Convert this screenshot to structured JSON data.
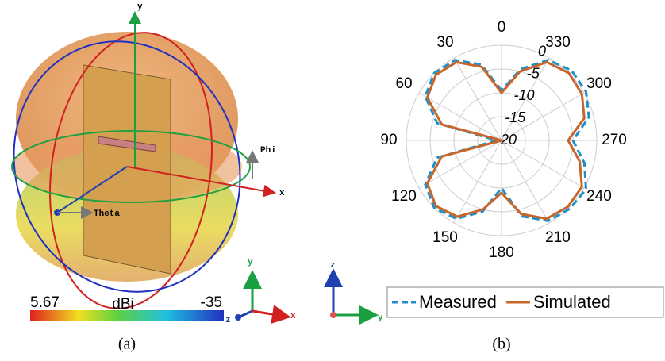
{
  "panel_a": {
    "axis_y": "y",
    "axis_x": "x",
    "phi": "Phi",
    "theta": "Theta",
    "colorbar": {
      "max_label": "5.67",
      "unit": "dBi",
      "min_label": "-35"
    },
    "triad": {
      "y": "y",
      "x": "x",
      "z": "z"
    },
    "caption": "(a)"
  },
  "panel_b_triad": {
    "z": "z",
    "y": "y"
  },
  "chart_data": {
    "type": "polar",
    "caption": "(b)",
    "theta": [
      0,
      15,
      30,
      45,
      60,
      75,
      90,
      105,
      120,
      135,
      150,
      165,
      180,
      195,
      210,
      225,
      240,
      255,
      270,
      285,
      300,
      315,
      330,
      345
    ],
    "thetaticks": [
      0,
      30,
      60,
      90,
      120,
      150,
      180,
      210,
      240,
      270,
      300,
      330
    ],
    "rlim": [
      -20,
      0
    ],
    "rticks": [
      0,
      -5,
      -10,
      -15,
      -20
    ],
    "series": [
      {
        "name": "Measured",
        "color": "#1f8fc8",
        "style": "dashed",
        "values": [
          -9.5,
          -3.5,
          -0.5,
          0,
          -1.5,
          -6,
          -19,
          -6,
          -1.5,
          0,
          -1,
          -4.5,
          -10,
          -3.5,
          -0.5,
          0.3,
          0.5,
          -2,
          -5,
          -1,
          0.5,
          0.8,
          -0.5,
          -4.5
        ]
      },
      {
        "name": "Simulated",
        "color": "#c8652a",
        "style": "solid",
        "values": [
          -10,
          -4,
          -1,
          -0.5,
          -2,
          -7,
          -20,
          -7,
          -2,
          -0.5,
          -1.5,
          -5,
          -9,
          -4,
          -1,
          -0.3,
          -0.5,
          -3,
          -6,
          -2,
          -0.5,
          0,
          -1,
          -5
        ]
      }
    ]
  }
}
